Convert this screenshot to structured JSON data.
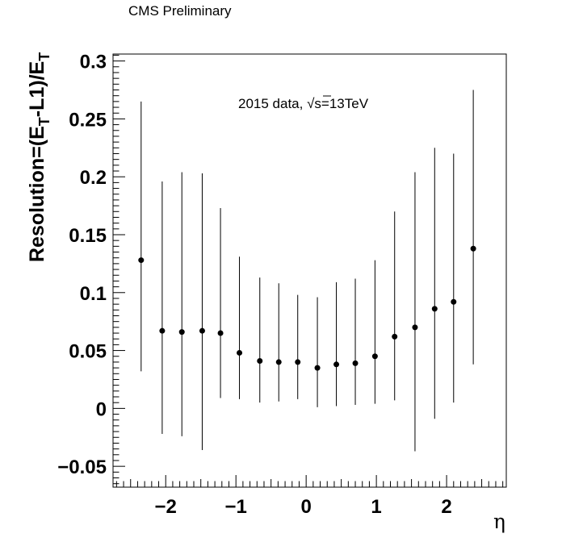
{
  "header": {
    "label": "CMS Preliminary"
  },
  "annotation": {
    "prefix": "2015 data, ",
    "sqrt_symbol": "√",
    "rest": "s=13TeV"
  },
  "axes": {
    "x_title": "η",
    "y_title_parts": [
      "Resolution=(E",
      "T",
      "-L1)/E",
      "T"
    ]
  },
  "chart_data": {
    "type": "scatter",
    "title": "",
    "xlabel": "η",
    "ylabel": "Resolution=(E_T-L1)/E_T",
    "xlim": [
      -2.75,
      2.85
    ],
    "ylim": [
      -0.068,
      0.306
    ],
    "x_ticks": [
      -2,
      -1,
      0,
      1,
      2
    ],
    "x_tick_labels": [
      "−2",
      "−1",
      "0",
      "1",
      "2"
    ],
    "y_ticks": [
      -0.05,
      0,
      0.05,
      0.1,
      0.15,
      0.2,
      0.25,
      0.3
    ],
    "y_tick_labels": [
      "−0.05",
      "0",
      "0.05",
      "0.1",
      "0.15",
      "0.2",
      "0.25",
      "0.3"
    ],
    "grid": false,
    "series": [
      {
        "x": [
          -2.35,
          -2.05,
          -1.77,
          -1.48,
          -1.22,
          -0.95,
          -0.66,
          -0.39,
          -0.12,
          0.16,
          0.43,
          0.7,
          0.98,
          1.26,
          1.55,
          1.83,
          2.1,
          2.38
        ],
        "y": [
          0.128,
          0.067,
          0.066,
          0.067,
          0.065,
          0.048,
          0.041,
          0.04,
          0.04,
          0.035,
          0.038,
          0.039,
          0.045,
          0.062,
          0.07,
          0.086,
          0.092,
          0.138
        ],
        "y_low": [
          0.032,
          -0.022,
          -0.024,
          -0.036,
          0.009,
          0.008,
          0.005,
          0.006,
          0.008,
          0.001,
          0.002,
          0.003,
          0.004,
          0.007,
          -0.037,
          -0.009,
          0.005,
          0.038
        ],
        "y_high": [
          0.265,
          0.196,
          0.204,
          0.203,
          0.173,
          0.131,
          0.113,
          0.108,
          0.098,
          0.096,
          0.109,
          0.112,
          0.128,
          0.17,
          0.204,
          0.225,
          0.22,
          0.275
        ]
      }
    ]
  }
}
